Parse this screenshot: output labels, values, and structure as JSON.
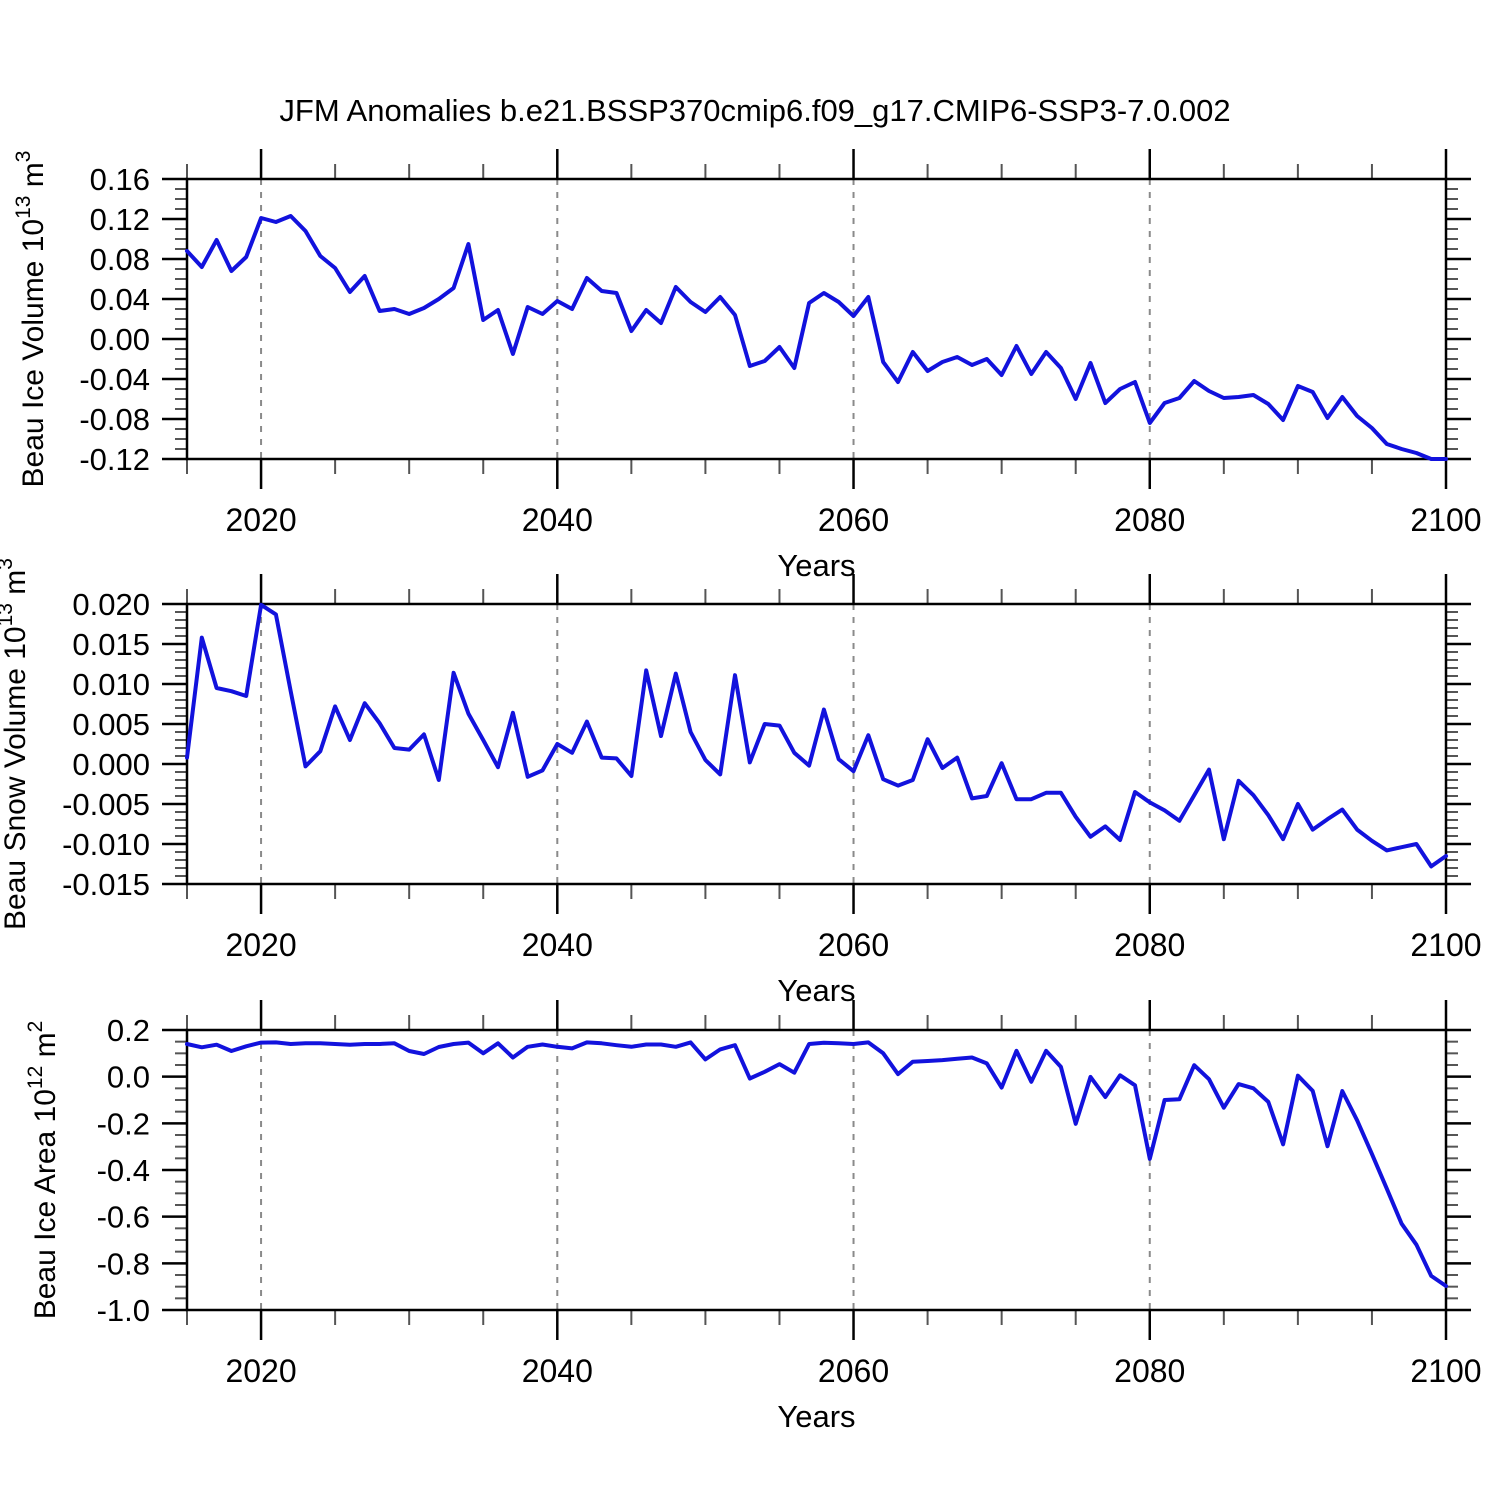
{
  "title": "JFM Anomalies b.e21.BSSP370cmip6.f09_g17.CMIP6-SSP3-7.0.002",
  "colors": {
    "line": "#1212dd",
    "grid": "#8a8a8a",
    "axis": "#000000",
    "minor_tick": "#555555"
  },
  "x_axis": {
    "label": "Years",
    "start": 2015,
    "end": 2100,
    "major_ticks": [
      2020,
      2040,
      2060,
      2080,
      2100
    ],
    "major_tick_labels": [
      "2020",
      "2040",
      "2060",
      "2080",
      "2100"
    ],
    "minor_step": 5,
    "gridline_years": [
      2020,
      2040,
      2060,
      2080
    ]
  },
  "years": [
    2015,
    2016,
    2017,
    2018,
    2019,
    2020,
    2021,
    2022,
    2023,
    2024,
    2025,
    2026,
    2027,
    2028,
    2029,
    2030,
    2031,
    2032,
    2033,
    2034,
    2035,
    2036,
    2037,
    2038,
    2039,
    2040,
    2041,
    2042,
    2043,
    2044,
    2045,
    2046,
    2047,
    2048,
    2049,
    2050,
    2051,
    2052,
    2053,
    2054,
    2055,
    2056,
    2057,
    2058,
    2059,
    2060,
    2061,
    2062,
    2063,
    2064,
    2065,
    2066,
    2067,
    2068,
    2069,
    2070,
    2071,
    2072,
    2073,
    2074,
    2075,
    2076,
    2077,
    2078,
    2079,
    2080,
    2081,
    2082,
    2083,
    2084,
    2085,
    2086,
    2087,
    2088,
    2089,
    2090,
    2091,
    2092,
    2093,
    2094,
    2095,
    2096,
    2097,
    2098,
    2099,
    2100
  ],
  "chart_data": [
    {
      "type": "line",
      "name": "beau-ice-volume",
      "ylabel_parts": [
        {
          "t": "Beau Ice Volume 10"
        },
        {
          "t": "13",
          "sup": true
        },
        {
          "t": " m"
        },
        {
          "t": "3",
          "sup": true
        }
      ],
      "ylim": [
        -0.12,
        0.16
      ],
      "ytick_values": [
        0.16,
        0.12,
        0.08,
        0.04,
        0.0,
        -0.04,
        -0.08,
        -0.12
      ],
      "ytick_labels": [
        "0.16",
        "0.12",
        "0.08",
        "0.04",
        "0.00",
        "-0.04",
        "-0.08",
        "-0.12"
      ],
      "yminor_step": 0.01,
      "values": [
        0.088,
        0.072,
        0.099,
        0.068,
        0.082,
        0.121,
        0.117,
        0.123,
        0.108,
        0.083,
        0.071,
        0.047,
        0.063,
        0.028,
        0.03,
        0.025,
        0.031,
        0.04,
        0.051,
        0.095,
        0.019,
        0.029,
        -0.015,
        0.032,
        0.025,
        0.038,
        0.03,
        0.061,
        0.048,
        0.046,
        0.008,
        0.029,
        0.016,
        0.052,
        0.037,
        0.027,
        0.042,
        0.024,
        -0.027,
        -0.022,
        -0.008,
        -0.029,
        0.036,
        0.046,
        0.037,
        0.023,
        0.042,
        -0.023,
        -0.043,
        -0.013,
        -0.032,
        -0.023,
        -0.018,
        -0.026,
        -0.02,
        -0.036,
        -0.007,
        -0.035,
        -0.013,
        -0.029,
        -0.06,
        -0.024,
        -0.064,
        -0.05,
        -0.043,
        -0.084,
        -0.064,
        -0.059,
        -0.042,
        -0.052,
        -0.059,
        -0.058,
        -0.056,
        -0.065,
        -0.081,
        -0.047,
        -0.053,
        -0.079,
        -0.058,
        -0.077,
        -0.089,
        -0.105,
        -0.11,
        -0.114,
        -0.12,
        -0.12
      ]
    },
    {
      "type": "line",
      "name": "beau-snow-volume",
      "ylabel_parts": [
        {
          "t": "Beau Snow Volume 10"
        },
        {
          "t": "13",
          "sup": true
        },
        {
          "t": " m"
        },
        {
          "t": "3",
          "sup": true
        }
      ],
      "ylim": [
        -0.015,
        0.02
      ],
      "ytick_values": [
        0.02,
        0.015,
        0.01,
        0.005,
        0.0,
        -0.005,
        -0.01,
        -0.015
      ],
      "ytick_labels": [
        "0.020",
        "0.015",
        "0.010",
        "0.005",
        "0.000",
        "-0.005",
        "-0.010",
        "-0.015"
      ],
      "yminor_step": 0.001,
      "values": [
        0.0008,
        0.0158,
        0.0095,
        0.0091,
        0.0085,
        0.0199,
        0.0187,
        0.0091,
        -0.0003,
        0.0016,
        0.0072,
        0.003,
        0.0076,
        0.0051,
        0.002,
        0.0018,
        0.0037,
        -0.002,
        0.0114,
        0.0063,
        0.003,
        -0.0004,
        0.0064,
        -0.0016,
        -0.0008,
        0.0025,
        0.0014,
        0.0053,
        0.0008,
        0.0007,
        -0.0015,
        0.0117,
        0.0035,
        0.0113,
        0.004,
        0.0005,
        -0.0013,
        0.0111,
        0.0002,
        0.005,
        0.0048,
        0.0014,
        -0.0002,
        0.0068,
        0.0006,
        -0.0009,
        0.0036,
        -0.0019,
        -0.0027,
        -0.002,
        0.0031,
        -0.0005,
        0.0008,
        -0.0043,
        -0.004,
        0.0001,
        -0.0044,
        -0.0044,
        -0.0036,
        -0.0036,
        -0.0066,
        -0.0091,
        -0.0078,
        -0.0095,
        -0.0035,
        -0.0048,
        -0.0058,
        -0.0071,
        -0.0039,
        -0.0007,
        -0.0094,
        -0.0021,
        -0.0039,
        -0.0064,
        -0.0094,
        -0.005,
        -0.0082,
        -0.0069,
        -0.0057,
        -0.0082,
        -0.0096,
        -0.0108,
        -0.0104,
        -0.01,
        -0.0128,
        -0.0115
      ]
    },
    {
      "type": "line",
      "name": "beau-ice-area",
      "ylabel_parts": [
        {
          "t": "Beau Ice Area 10"
        },
        {
          "t": "12",
          "sup": true
        },
        {
          "t": " m"
        },
        {
          "t": "2",
          "sup": true
        }
      ],
      "ylim": [
        -1.0,
        0.2
      ],
      "ytick_values": [
        0.2,
        0.0,
        -0.2,
        -0.4,
        -0.6,
        -0.8,
        -1.0
      ],
      "ytick_labels": [
        "0.2",
        "0.0",
        "-0.2",
        "-0.4",
        "-0.6",
        "-0.8",
        "-1.0"
      ],
      "yminor_step": 0.05,
      "values": [
        0.14,
        0.126,
        0.137,
        0.11,
        0.13,
        0.146,
        0.147,
        0.14,
        0.143,
        0.143,
        0.14,
        0.137,
        0.14,
        0.14,
        0.143,
        0.11,
        0.097,
        0.127,
        0.14,
        0.146,
        0.1,
        0.143,
        0.082,
        0.128,
        0.138,
        0.128,
        0.121,
        0.147,
        0.143,
        0.135,
        0.128,
        0.138,
        0.138,
        0.128,
        0.147,
        0.074,
        0.117,
        0.135,
        -0.008,
        0.021,
        0.054,
        0.017,
        0.14,
        0.145,
        0.143,
        0.14,
        0.147,
        0.1,
        0.011,
        0.064,
        0.067,
        0.071,
        0.077,
        0.082,
        0.057,
        -0.047,
        0.111,
        -0.022,
        0.111,
        0.042,
        -0.202,
        -0.001,
        -0.087,
        0.006,
        -0.037,
        -0.352,
        -0.1,
        -0.097,
        0.049,
        -0.011,
        -0.133,
        -0.032,
        -0.05,
        -0.108,
        -0.29,
        0.004,
        -0.061,
        -0.298,
        -0.062,
        -0.187,
        -0.331,
        -0.48,
        -0.63,
        -0.72,
        -0.854,
        -0.897
      ]
    }
  ]
}
